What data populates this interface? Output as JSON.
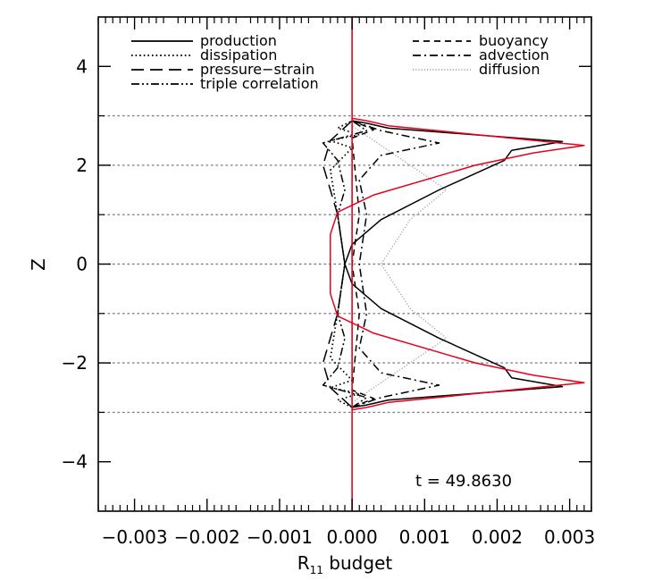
{
  "chart_data": {
    "type": "line",
    "title": "",
    "xlabel_main": "R",
    "xlabel_sub": "11",
    "xlabel_tail": " budget",
    "ylabel": "Z",
    "xlim": [
      -0.0035,
      0.0033
    ],
    "ylim": [
      -5,
      5
    ],
    "xticks": [
      -0.003,
      -0.002,
      -0.001,
      0.0,
      0.001,
      0.002,
      0.003
    ],
    "xtick_labels": [
      "−0.003",
      "−0.002",
      "−0.001",
      "0.000",
      "0.001",
      "0.002",
      "0.003"
    ],
    "yticks": [
      -4,
      -2,
      0,
      2,
      4
    ],
    "ytick_labels": [
      "−4",
      "−2",
      "0",
      "2",
      "4"
    ],
    "hgrid_dotted": [
      3,
      2,
      1,
      0,
      -1,
      -2,
      -3
    ],
    "annotation": "t = 49.8630",
    "legend_left": [
      "production",
      "dissipation",
      "pressure−strain",
      "triple correlation"
    ],
    "legend_right": [
      "buoyancy",
      "advection",
      "diffusion"
    ],
    "colors": {
      "axes": "#000000",
      "grid": "#808080",
      "red": "#e8001c",
      "diffusion": "#9a9a9a"
    },
    "series": [
      {
        "name": "production",
        "style": "solid",
        "color": "#000000",
        "points": [
          [
            0.0,
            -2.9
          ],
          [
            0.0002,
            -2.85
          ],
          [
            0.0005,
            -2.75
          ],
          [
            0.0029,
            -2.48
          ],
          [
            0.0022,
            -2.3
          ],
          [
            0.0021,
            -2.1
          ],
          [
            0.0012,
            -1.5
          ],
          [
            0.0004,
            -0.9
          ],
          [
            0.0,
            -0.4
          ],
          [
            -0.0001,
            0.0
          ],
          [
            0.0,
            0.4
          ],
          [
            0.0004,
            0.9
          ],
          [
            0.0012,
            1.5
          ],
          [
            0.0021,
            2.1
          ],
          [
            0.0022,
            2.3
          ],
          [
            0.0029,
            2.48
          ],
          [
            0.0005,
            2.75
          ],
          [
            0.0002,
            2.85
          ],
          [
            0.0,
            2.9
          ]
        ]
      },
      {
        "name": "total",
        "style": "solid",
        "color": "#e8001c",
        "points": [
          [
            0.0,
            -2.95
          ],
          [
            0.0002,
            -2.9
          ],
          [
            0.0005,
            -2.8
          ],
          [
            0.0032,
            -2.4
          ],
          [
            0.0025,
            -2.25
          ],
          [
            0.0017,
            -2.0
          ],
          [
            0.0003,
            -1.4
          ],
          [
            -0.0002,
            -1.05
          ],
          [
            -0.0003,
            -0.6
          ],
          [
            -0.0003,
            0.0
          ],
          [
            -0.0003,
            0.6
          ],
          [
            -0.0002,
            1.05
          ],
          [
            0.0003,
            1.4
          ],
          [
            0.0017,
            2.0
          ],
          [
            0.0025,
            2.25
          ],
          [
            0.0032,
            2.4
          ],
          [
            0.0005,
            2.8
          ],
          [
            0.0002,
            2.9
          ],
          [
            0.0,
            2.95
          ]
        ]
      },
      {
        "name": "dissipation",
        "style": "dotted",
        "color": "#000000",
        "points": [
          [
            0.0,
            -2.9
          ],
          [
            -0.0002,
            -2.75
          ],
          [
            0.0001,
            -2.62
          ],
          [
            -0.0003,
            -2.5
          ],
          [
            0.0,
            -2.35
          ],
          [
            -0.0003,
            -1.9
          ],
          [
            -0.0002,
            -1.0
          ],
          [
            -0.0001,
            0.0
          ],
          [
            -0.0002,
            1.0
          ],
          [
            -0.0003,
            1.9
          ],
          [
            0.0,
            2.35
          ],
          [
            -0.0003,
            2.5
          ],
          [
            0.0001,
            2.62
          ],
          [
            -0.0002,
            2.75
          ],
          [
            0.0,
            2.9
          ]
        ]
      },
      {
        "name": "pressure−strain",
        "style": "longdash",
        "color": "#000000",
        "points": [
          [
            0.0,
            -2.9
          ],
          [
            -0.0003,
            -2.5
          ],
          [
            -0.0004,
            -2.0
          ],
          [
            -0.0003,
            -1.5
          ],
          [
            -0.0002,
            -1.0
          ],
          [
            -0.0001,
            0.0
          ],
          [
            -0.0002,
            1.0
          ],
          [
            -0.0003,
            1.5
          ],
          [
            -0.0004,
            2.0
          ],
          [
            -0.0003,
            2.5
          ],
          [
            0.0,
            2.9
          ]
        ]
      },
      {
        "name": "triple correlation",
        "style": "dashdotdot",
        "color": "#000000",
        "points": [
          [
            0.0,
            -2.9
          ],
          [
            0.0002,
            -2.7
          ],
          [
            -0.0004,
            -2.45
          ],
          [
            -0.0002,
            -2.1
          ],
          [
            -0.0001,
            -1.5
          ],
          [
            -0.0002,
            -1.0
          ],
          [
            -0.0001,
            0.0
          ],
          [
            -0.0002,
            1.0
          ],
          [
            -0.0001,
            1.5
          ],
          [
            -0.0002,
            2.1
          ],
          [
            -0.0004,
            2.45
          ],
          [
            0.0002,
            2.7
          ],
          [
            0.0,
            2.9
          ]
        ]
      },
      {
        "name": "buoyancy",
        "style": "dashed",
        "color": "#000000",
        "points": [
          [
            0.0,
            -2.9
          ],
          [
            0.0003,
            -2.72
          ],
          [
            0.0,
            -2.55
          ],
          [
            0.0001,
            -1.0
          ],
          [
            0.0,
            0.0
          ],
          [
            0.0001,
            1.0
          ],
          [
            0.0,
            2.55
          ],
          [
            0.0003,
            2.72
          ],
          [
            0.0,
            2.9
          ]
        ]
      },
      {
        "name": "advection",
        "style": "dashdot",
        "color": "#000000",
        "points": [
          [
            0.0,
            -2.9
          ],
          [
            0.0004,
            -2.7
          ],
          [
            0.0012,
            -2.45
          ],
          [
            0.0004,
            -2.2
          ],
          [
            0.0001,
            -1.7
          ],
          [
            0.0002,
            -1.0
          ],
          [
            0.0001,
            0.0
          ],
          [
            0.0002,
            1.0
          ],
          [
            0.0001,
            1.7
          ],
          [
            0.0004,
            2.2
          ],
          [
            0.0012,
            2.45
          ],
          [
            0.0004,
            2.7
          ],
          [
            0.0,
            2.9
          ]
        ]
      },
      {
        "name": "diffusion",
        "style": "finedot",
        "color": "#9a9a9a",
        "points": [
          [
            0.0,
            -2.8
          ],
          [
            0.0005,
            -2.3
          ],
          [
            0.0013,
            -1.5
          ],
          [
            0.0008,
            -0.9
          ],
          [
            0.0004,
            0.0
          ],
          [
            0.0008,
            0.9
          ],
          [
            0.0013,
            1.5
          ],
          [
            0.0005,
            2.3
          ],
          [
            0.0,
            2.8
          ]
        ]
      }
    ]
  }
}
